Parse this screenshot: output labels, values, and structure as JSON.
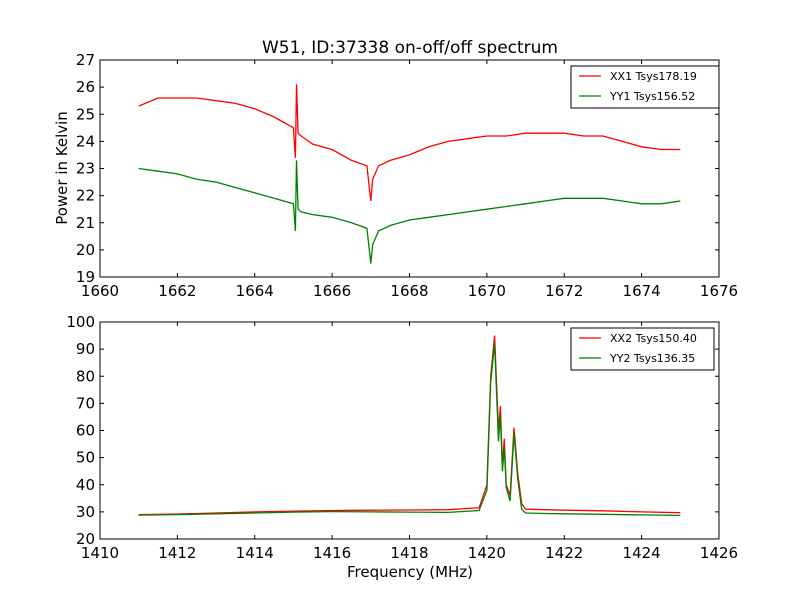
{
  "chart_data": [
    {
      "type": "line",
      "title": "W51, ID:37338 on-off/off spectrum",
      "xlabel": "",
      "ylabel": "Power in Kelvin",
      "xlim": [
        1660,
        1676
      ],
      "ylim": [
        19,
        27
      ],
      "xticks": [
        1660,
        1662,
        1664,
        1666,
        1668,
        1670,
        1672,
        1674,
        1676
      ],
      "yticks": [
        19,
        20,
        21,
        22,
        23,
        24,
        25,
        26,
        27
      ],
      "grid": false,
      "legend": "top-right",
      "series": [
        {
          "name": "XX1 Tsys178.19",
          "color": "#ff0000",
          "x": [
            1661.0,
            1661.5,
            1662.0,
            1662.5,
            1663.0,
            1663.5,
            1664.0,
            1664.5,
            1665.0,
            1665.05,
            1665.08,
            1665.12,
            1665.2,
            1665.5,
            1666.0,
            1666.5,
            1666.9,
            1667.0,
            1667.05,
            1667.2,
            1667.5,
            1668.0,
            1668.5,
            1669.0,
            1669.5,
            1670.0,
            1670.5,
            1671.0,
            1671.5,
            1672.0,
            1672.5,
            1673.0,
            1673.5,
            1674.0,
            1674.5,
            1675.0
          ],
          "y": [
            25.3,
            25.6,
            25.6,
            25.6,
            25.5,
            25.4,
            25.2,
            24.9,
            24.5,
            23.4,
            26.1,
            24.3,
            24.2,
            23.9,
            23.7,
            23.3,
            23.1,
            21.8,
            22.6,
            23.1,
            23.3,
            23.5,
            23.8,
            24.0,
            24.1,
            24.2,
            24.2,
            24.3,
            24.3,
            24.3,
            24.2,
            24.2,
            24.0,
            23.8,
            23.7,
            23.7
          ]
        },
        {
          "name": "YY1 Tsys156.52",
          "color": "#008000",
          "x": [
            1661.0,
            1661.5,
            1662.0,
            1662.5,
            1663.0,
            1663.5,
            1664.0,
            1664.5,
            1665.0,
            1665.05,
            1665.08,
            1665.12,
            1665.2,
            1665.5,
            1666.0,
            1666.5,
            1666.9,
            1667.0,
            1667.05,
            1667.2,
            1667.5,
            1668.0,
            1668.5,
            1669.0,
            1669.5,
            1670.0,
            1670.5,
            1671.0,
            1671.5,
            1672.0,
            1672.5,
            1673.0,
            1673.5,
            1674.0,
            1674.5,
            1675.0
          ],
          "y": [
            23.0,
            22.9,
            22.8,
            22.6,
            22.5,
            22.3,
            22.1,
            21.9,
            21.7,
            20.7,
            23.3,
            21.5,
            21.4,
            21.3,
            21.2,
            21.0,
            20.8,
            19.5,
            20.2,
            20.7,
            20.9,
            21.1,
            21.2,
            21.3,
            21.4,
            21.5,
            21.6,
            21.7,
            21.8,
            21.9,
            21.9,
            21.9,
            21.8,
            21.7,
            21.7,
            21.8
          ]
        }
      ]
    },
    {
      "type": "line",
      "title": "",
      "xlabel": "Frequency (MHz)",
      "ylabel": "",
      "xlim": [
        1410,
        1426
      ],
      "ylim": [
        20,
        100
      ],
      "xticks": [
        1410,
        1412,
        1414,
        1416,
        1418,
        1420,
        1422,
        1424,
        1426
      ],
      "yticks": [
        20,
        30,
        40,
        50,
        60,
        70,
        80,
        90,
        100
      ],
      "grid": false,
      "legend": "top-right",
      "series": [
        {
          "name": "XX2 Tsys150.40",
          "color": "#ff0000",
          "x": [
            1411.0,
            1412.0,
            1413.0,
            1414.0,
            1415.0,
            1416.0,
            1417.0,
            1418.0,
            1419.0,
            1419.8,
            1420.0,
            1420.1,
            1420.2,
            1420.3,
            1420.35,
            1420.4,
            1420.45,
            1420.5,
            1420.6,
            1420.7,
            1420.8,
            1420.9,
            1421.0,
            1421.5,
            1422.0,
            1423.0,
            1424.0,
            1425.0
          ],
          "y": [
            29.0,
            29.2,
            29.6,
            30.0,
            30.3,
            30.5,
            30.6,
            30.7,
            30.8,
            31.5,
            40.0,
            80.0,
            95.0,
            60.0,
            69.0,
            47.0,
            57.0,
            40.0,
            36.0,
            61.0,
            44.0,
            33.0,
            31.0,
            30.8,
            30.6,
            30.4,
            30.0,
            29.7
          ]
        },
        {
          "name": "YY2 Tsys136.35",
          "color": "#008000",
          "x": [
            1411.0,
            1412.0,
            1413.0,
            1414.0,
            1415.0,
            1416.0,
            1417.0,
            1418.0,
            1419.0,
            1419.8,
            1420.0,
            1420.1,
            1420.2,
            1420.3,
            1420.35,
            1420.4,
            1420.45,
            1420.5,
            1420.6,
            1420.7,
            1420.8,
            1420.9,
            1421.0,
            1421.5,
            1422.0,
            1423.0,
            1424.0,
            1425.0
          ],
          "y": [
            28.8,
            29.0,
            29.3,
            29.6,
            29.9,
            30.1,
            30.0,
            29.9,
            29.8,
            30.5,
            38.0,
            78.0,
            92.0,
            56.0,
            66.0,
            45.0,
            54.0,
            39.0,
            34.0,
            59.0,
            42.0,
            31.0,
            29.6,
            29.4,
            29.3,
            29.1,
            28.9,
            28.7
          ]
        }
      ]
    }
  ]
}
